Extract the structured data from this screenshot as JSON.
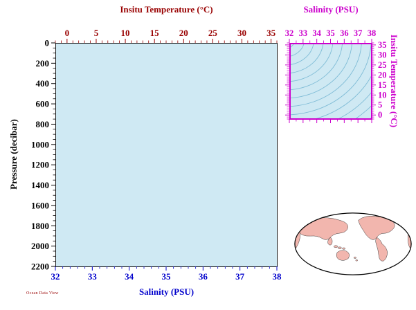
{
  "canvas": {
    "background": "#ffffff",
    "footer_stamp": "Ocean Data View"
  },
  "colors": {
    "plot_fill": "#cfe9f3",
    "temp_axis": "#990000",
    "sal_axis": "#0000cc",
    "pressure_axis": "#000000",
    "ts_axis": "#cc00cc",
    "contour": "#7fbcd6",
    "land": "#f2b6ae",
    "map_outline": "#000000"
  },
  "chart_data": [
    {
      "id": "main-plot",
      "type": "scatter",
      "points": [],
      "grid": false,
      "axes": {
        "top": {
          "label": "Insitu Temperature (°C)",
          "min": -2,
          "max": 36,
          "major_ticks": [
            0,
            5,
            10,
            15,
            20,
            25,
            30,
            35
          ],
          "minor_step": 1,
          "color": "#990000"
        },
        "bottom": {
          "label": "Salinity (PSU)",
          "min": 32,
          "max": 38,
          "major_ticks": [
            32,
            33,
            34,
            35,
            36,
            37,
            38
          ],
          "minor_step": 0.2,
          "color": "#0000cc"
        },
        "left": {
          "label": "Pressure (decibar)",
          "min": 0,
          "max": 2200,
          "inverted": true,
          "major_ticks": [
            0,
            200,
            400,
            600,
            800,
            1000,
            1200,
            1400,
            1600,
            1800,
            2000,
            2200
          ],
          "minor_step": 50,
          "color": "#000000"
        }
      }
    },
    {
      "id": "ts-overview-plot",
      "type": "scatter",
      "points": [],
      "has_isopycnal_contours": true,
      "axes": {
        "top": {
          "label": "Salinity (PSU)",
          "min": 32,
          "max": 38,
          "major_ticks": [
            32,
            33,
            34,
            35,
            36,
            37,
            38
          ],
          "minor_step": 0.5,
          "color": "#cc00cc"
        },
        "right": {
          "label": "Insitu Temperature (°C)",
          "min": -2,
          "max": 36,
          "major_ticks": [
            0,
            5,
            10,
            15,
            20,
            25,
            30,
            35
          ],
          "minor_step": 1,
          "color": "#cc00cc"
        }
      }
    }
  ]
}
